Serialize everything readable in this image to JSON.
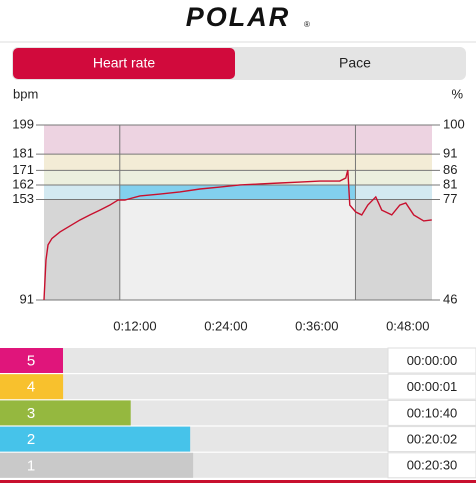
{
  "header": {
    "logo": "POLAR",
    "logo_mark": "®"
  },
  "tabs": {
    "items": [
      "Heart rate",
      "Pace"
    ],
    "active": 0
  },
  "chart_data": [
    {
      "type": "line",
      "y_label": "bpm",
      "y2_label": "%",
      "color": "#c8102e",
      "xlim": [
        0,
        51.2
      ],
      "xticks": [
        {
          "value": 12,
          "label": "0:12:00"
        },
        {
          "value": 24,
          "label": "0:24:00"
        },
        {
          "value": 36,
          "label": "0:36:00"
        },
        {
          "value": 48,
          "label": "0:48:00"
        }
      ],
      "ylim": [
        91,
        199
      ],
      "yticks": [
        91,
        153,
        162,
        171,
        181,
        199
      ],
      "y2lim": [
        45.7,
        100
      ],
      "y2ticks": [
        {
          "value": 45.7,
          "label": "46"
        },
        {
          "value": 76.9,
          "label": "77"
        },
        {
          "value": 81.4,
          "label": "81"
        },
        {
          "value": 85.9,
          "label": "86"
        },
        {
          "value": 91.0,
          "label": "91"
        },
        {
          "value": 100,
          "label": "100"
        }
      ],
      "bands": [
        {
          "from": 91,
          "to": 153,
          "color": "#d6d6d6"
        },
        {
          "from": 153,
          "to": 162,
          "color": "#d3e9f1"
        },
        {
          "from": 162,
          "to": 171,
          "color": "#ecefde"
        },
        {
          "from": 171,
          "to": 181,
          "color": "#f3ecd6"
        },
        {
          "from": 181,
          "to": 199,
          "color": "#edd3e1"
        }
      ],
      "highlight_xlim": [
        10.0,
        41.1
      ],
      "highlight_band": {
        "from": 153,
        "to": 162,
        "color": "#82d0ee"
      },
      "highlight_below_color": "#efefef",
      "x": [
        0,
        0.26,
        0.53,
        1.05,
        2.11,
        3.43,
        4.75,
        6.07,
        7.38,
        8.7,
        9.76,
        10.68,
        12.66,
        15.3,
        17.93,
        20.57,
        23.21,
        25.85,
        28.48,
        31.12,
        33.76,
        36.4,
        39.03,
        39.82,
        40.09,
        40.35,
        41.14,
        41.93,
        42.73,
        43.78,
        44.57,
        45.89,
        46.95,
        47.74,
        48.79,
        50.11,
        51.17
      ],
      "values": [
        91,
        115.7,
        125,
        129,
        133,
        136.7,
        140.4,
        143.5,
        146.5,
        149.6,
        152.7,
        152.7,
        155.2,
        156.4,
        157.7,
        159.5,
        160.7,
        162,
        162.6,
        163.2,
        163.8,
        164.4,
        164.4,
        166.3,
        171.2,
        149.6,
        145.3,
        143.5,
        149.6,
        154.6,
        146.5,
        143.5,
        149.6,
        150.9,
        143.5,
        139.8,
        140.4
      ]
    },
    {
      "type": "bar",
      "categories": [
        "5",
        "4",
        "3",
        "2",
        "1"
      ],
      "values": [
        0,
        1,
        640,
        1202,
        1230
      ],
      "value_labels": [
        "00:00:00",
        "00:00:01",
        "00:10:40",
        "00:20:02",
        "00:20:30"
      ],
      "colors": [
        "#e0157b",
        "#f8c12d",
        "#95b83f",
        "#46c3ea",
        "#c9c9c9"
      ],
      "xlim": [
        0,
        3072
      ]
    }
  ]
}
